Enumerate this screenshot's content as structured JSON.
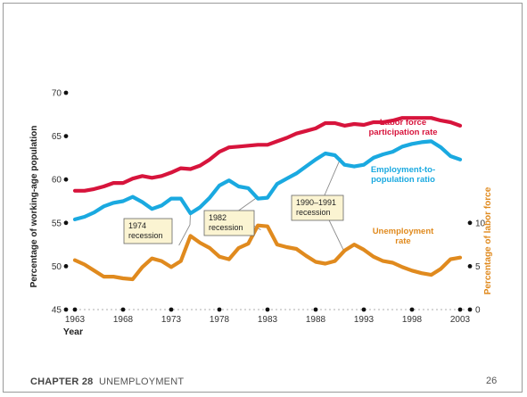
{
  "slide": {
    "chapter_label": "CHAPTER 28",
    "chapter_title": "UNEMPLOYMENT",
    "page_number": "26"
  },
  "chart_data": {
    "type": "line",
    "xlabel": "Year",
    "ylabel_left": "Percentage of working-age population",
    "ylabel_right": "Percentage of labor force",
    "x_ticks": [
      1963,
      1968,
      1973,
      1978,
      1983,
      1988,
      1993,
      1998,
      2003
    ],
    "xlim": [
      1963,
      2003
    ],
    "ylim_left": [
      45,
      70
    ],
    "yticks_left": [
      45,
      50,
      55,
      60,
      65,
      70
    ],
    "ylim_right": [
      0,
      25
    ],
    "yticks_right": [
      0,
      5,
      10
    ],
    "colors": {
      "participation": "#d7143c",
      "employment": "#1aa9e0",
      "unemployment": "#e08a1e",
      "annotation_bg": "#fbf4d2"
    },
    "series": [
      {
        "key": "participation",
        "name": "Labor force participation rate",
        "axis": "left",
        "x": [
          1963,
          1964,
          1965,
          1966,
          1967,
          1968,
          1969,
          1970,
          1971,
          1972,
          1973,
          1974,
          1975,
          1976,
          1977,
          1978,
          1979,
          1980,
          1981,
          1982,
          1983,
          1984,
          1985,
          1986,
          1987,
          1988,
          1989,
          1990,
          1991,
          1992,
          1993,
          1994,
          1995,
          1996,
          1997,
          1998,
          1999,
          2000,
          2001,
          2002,
          2003
        ],
        "values": [
          58.7,
          58.7,
          58.9,
          59.2,
          59.6,
          59.6,
          60.1,
          60.4,
          60.2,
          60.4,
          60.8,
          61.3,
          61.2,
          61.6,
          62.3,
          63.2,
          63.7,
          63.8,
          63.9,
          64.0,
          64.0,
          64.4,
          64.8,
          65.3,
          65.6,
          65.9,
          66.5,
          66.5,
          66.2,
          66.4,
          66.3,
          66.6,
          66.6,
          66.8,
          67.1,
          67.1,
          67.1,
          67.1,
          66.8,
          66.6,
          66.2
        ]
      },
      {
        "key": "employment",
        "name": "Employment-to-population ratio",
        "axis": "left",
        "x": [
          1963,
          1964,
          1965,
          1966,
          1967,
          1968,
          1969,
          1970,
          1971,
          1972,
          1973,
          1974,
          1975,
          1976,
          1977,
          1978,
          1979,
          1980,
          1981,
          1982,
          1983,
          1984,
          1985,
          1986,
          1987,
          1988,
          1989,
          1990,
          1991,
          1992,
          1993,
          1994,
          1995,
          1996,
          1997,
          1998,
          1999,
          2000,
          2001,
          2002,
          2003
        ],
        "values": [
          55.4,
          55.7,
          56.2,
          56.9,
          57.3,
          57.5,
          58.0,
          57.4,
          56.6,
          57.0,
          57.8,
          57.8,
          56.1,
          56.8,
          57.9,
          59.3,
          59.9,
          59.2,
          59.0,
          57.8,
          57.9,
          59.5,
          60.1,
          60.7,
          61.5,
          62.3,
          63.0,
          62.8,
          61.7,
          61.5,
          61.7,
          62.5,
          62.9,
          63.2,
          63.8,
          64.1,
          64.3,
          64.4,
          63.7,
          62.7,
          62.3
        ]
      },
      {
        "key": "unemployment",
        "name": "Unemployment rate",
        "axis": "right",
        "x": [
          1963,
          1964,
          1965,
          1966,
          1967,
          1968,
          1969,
          1970,
          1971,
          1972,
          1973,
          1974,
          1975,
          1976,
          1977,
          1978,
          1979,
          1980,
          1981,
          1982,
          1983,
          1984,
          1985,
          1986,
          1987,
          1988,
          1989,
          1990,
          1991,
          1992,
          1993,
          1994,
          1995,
          1996,
          1997,
          1998,
          1999,
          2000,
          2001,
          2002,
          2003
        ],
        "values": [
          5.7,
          5.2,
          4.5,
          3.8,
          3.8,
          3.6,
          3.5,
          4.9,
          5.9,
          5.6,
          4.9,
          5.6,
          8.5,
          7.7,
          7.1,
          6.1,
          5.8,
          7.1,
          7.6,
          9.7,
          9.6,
          7.5,
          7.2,
          7.0,
          6.2,
          5.5,
          5.3,
          5.6,
          6.8,
          7.5,
          6.9,
          6.1,
          5.6,
          5.4,
          4.9,
          4.5,
          4.2,
          4.0,
          4.7,
          5.8,
          6.0
        ]
      }
    ],
    "series_labels": [
      {
        "key": "participation",
        "lines": [
          "Labor force",
          "participation rate"
        ]
      },
      {
        "key": "employment",
        "lines": [
          "Employment-to-",
          "population ratio"
        ]
      },
      {
        "key": "unemployment",
        "lines": [
          "Unemployment",
          "rate"
        ]
      }
    ],
    "annotations": [
      {
        "lines": [
          "1974",
          "recession"
        ],
        "year": 1975
      },
      {
        "lines": [
          "1982",
          "recession"
        ],
        "year": 1982
      },
      {
        "lines": [
          "1990–1991",
          "recession"
        ],
        "year": 1991
      }
    ]
  }
}
